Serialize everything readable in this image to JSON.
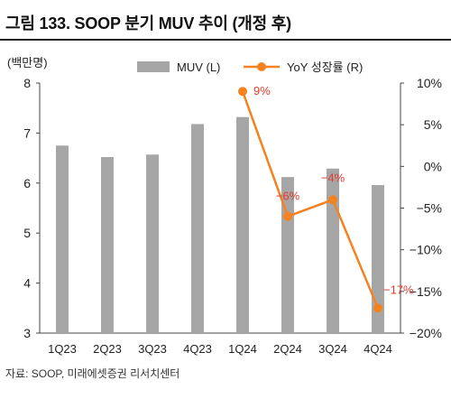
{
  "title": "그림 133. SOOP 분기 MUV 추이 (개정 후)",
  "source": "자료: SOOP, 미래에셋증권 리서치센터",
  "chart_data": {
    "type": "bar+line",
    "categories": [
      "1Q23",
      "2Q23",
      "3Q23",
      "4Q23",
      "1Q24",
      "2Q24",
      "3Q24",
      "4Q24"
    ],
    "series": [
      {
        "name": "MUV (L)",
        "type": "bar",
        "axis": "left",
        "color": "#a6a6a6",
        "values": [
          6.75,
          6.52,
          6.57,
          7.18,
          7.32,
          6.12,
          6.29,
          5.96
        ]
      },
      {
        "name": "YoY 성장률 (R)",
        "type": "line",
        "axis": "right",
        "color": "#f58220",
        "values": [
          null,
          null,
          null,
          null,
          9,
          -6,
          -4,
          -17
        ],
        "labels": [
          "",
          "",
          "",
          "",
          "9%",
          "−6%",
          "−4%",
          "−17%"
        ]
      }
    ],
    "y_left": {
      "unit_label": "(백만명)",
      "range": [
        3,
        8
      ],
      "ticks": [
        3,
        4,
        5,
        6,
        7,
        8
      ],
      "tick_labels": [
        "3",
        "4",
        "5",
        "6",
        "7",
        "8"
      ]
    },
    "y_right": {
      "range": [
        -20,
        10
      ],
      "ticks": [
        10,
        5,
        0,
        -5,
        -10,
        -15,
        -20
      ],
      "tick_labels": [
        "10%",
        "5%",
        "0%",
        "−5%",
        "−10%",
        "−15%",
        "−20%"
      ]
    },
    "legend_position": "top",
    "grid": false
  }
}
